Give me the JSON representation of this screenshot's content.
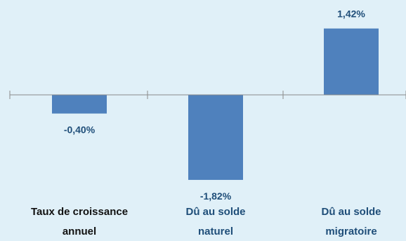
{
  "chart_data": {
    "type": "bar",
    "categories": [
      [
        "Taux de croissance",
        "annuel"
      ],
      [
        "Dû au solde",
        "naturel"
      ],
      [
        "Dû au solde",
        "migratoire"
      ]
    ],
    "values": [
      -0.4,
      -1.82,
      1.42
    ],
    "value_labels": [
      "-0,40%",
      "-1,82%",
      "1,42%"
    ],
    "title": "",
    "xlabel": "",
    "ylabel": "",
    "ylim": [
      -2.0,
      1.6
    ],
    "grid": false,
    "legend": "none",
    "colors": {
      "background": "#e0f0f8",
      "bar": "#4f81bd",
      "value_label": "#1f4e79",
      "first_category_label": "#111111",
      "other_category_labels": "#1f4e79",
      "axis": "#8a8a8a"
    }
  }
}
